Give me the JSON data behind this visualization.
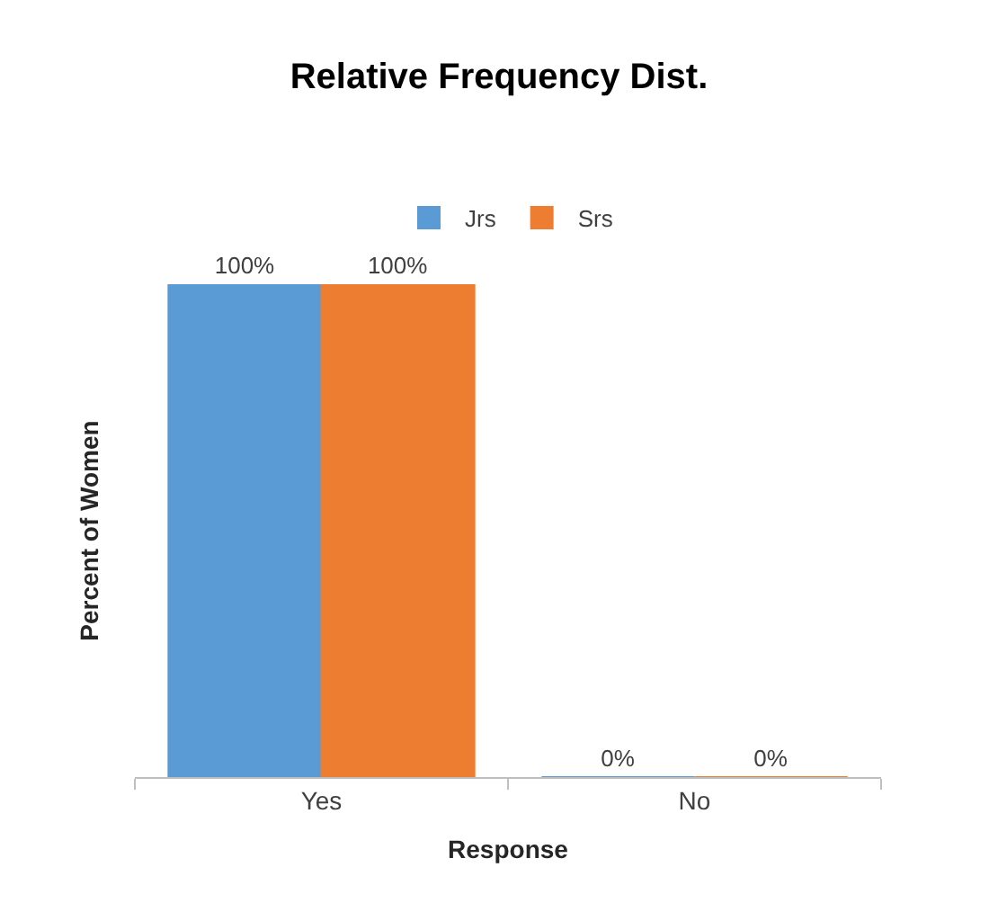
{
  "chart_data": {
    "type": "bar",
    "title": "Relative Frequency Dist.",
    "xlabel": "Response",
    "ylabel": "Percent of Women",
    "categories": [
      "Yes",
      "No"
    ],
    "series": [
      {
        "name": "Jrs",
        "color": "#5b9bd5",
        "values": [
          100,
          0
        ],
        "value_labels": [
          "100%",
          "0%"
        ]
      },
      {
        "name": "Srs",
        "color": "#ed7d31",
        "values": [
          100,
          0
        ],
        "value_labels": [
          "100%",
          "0%"
        ]
      }
    ],
    "ylim": [
      0,
      100
    ],
    "legend": "top",
    "tick_labels": "x"
  }
}
